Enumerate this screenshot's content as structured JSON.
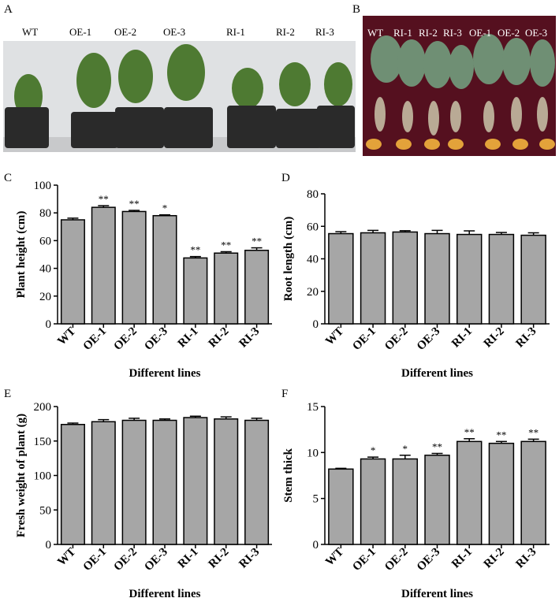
{
  "panels": {
    "a": {
      "label": "A",
      "plants": [
        "WT",
        "OE-1",
        "OE-2",
        "OE-3",
        "RI-1",
        "RI-2",
        "RI-3"
      ]
    },
    "b": {
      "label": "B",
      "plants": [
        "WT",
        "RI-1",
        "RI-2",
        "RI-3",
        "OE-1",
        "OE-2",
        "OE-3"
      ]
    }
  },
  "colors": {
    "bar": "#a6a6a6",
    "photo_wall": "#dcdee0",
    "photo_cloth": "#55101f",
    "pot": "#2a2a2a",
    "leaf": "#4e7a32"
  },
  "chart_data": [
    {
      "id": "C",
      "panel_label": "C",
      "type": "bar",
      "categories": [
        "WT",
        "OE-1",
        "OE-2",
        "OE-3",
        "RI-1",
        "RI-2",
        "RI-3"
      ],
      "values": [
        75,
        84,
        81,
        78,
        47.5,
        51,
        53
      ],
      "errors": [
        1.2,
        1.2,
        0.8,
        0.6,
        1.0,
        1.0,
        1.8
      ],
      "significance": [
        "",
        "**",
        "**",
        "*",
        "**",
        "**",
        "**"
      ],
      "ylim": [
        0,
        100
      ],
      "yticks": [
        0,
        20,
        40,
        60,
        80,
        100
      ],
      "xlabel": "Different lines",
      "ylabel": "Plant height (cm)",
      "title": ""
    },
    {
      "id": "D",
      "panel_label": "D",
      "type": "bar",
      "categories": [
        "WT",
        "OE-1",
        "OE-2",
        "OE-3",
        "RI-1",
        "RI-2",
        "RI-3"
      ],
      "values": [
        55.5,
        56,
        56.5,
        55.5,
        55,
        55,
        54.5
      ],
      "errors": [
        1.2,
        1.5,
        0.8,
        2.0,
        2.2,
        1.2,
        1.5
      ],
      "significance": [
        "",
        "",
        "",
        "",
        "",
        "",
        ""
      ],
      "ylim": [
        0,
        80
      ],
      "yticks": [
        0,
        20,
        40,
        60,
        80
      ],
      "xlabel": "Different lines",
      "ylabel": "Root length (cm)",
      "title": ""
    },
    {
      "id": "E",
      "panel_label": "E",
      "type": "bar",
      "categories": [
        "WT",
        "OE-1",
        "OE-2",
        "OE-3",
        "RI-1",
        "RI-2",
        "RI-3"
      ],
      "values": [
        174,
        178,
        180,
        180,
        184,
        182,
        180
      ],
      "errors": [
        2,
        3,
        3,
        2,
        2,
        3,
        3
      ],
      "significance": [
        "",
        "",
        "",
        "",
        "",
        "",
        ""
      ],
      "ylim": [
        0,
        200
      ],
      "yticks": [
        0,
        50,
        100,
        150,
        200
      ],
      "xlabel": "Different lines",
      "ylabel": "Fresh weight of plant (g)",
      "title": ""
    },
    {
      "id": "F",
      "panel_label": "F",
      "type": "bar",
      "categories": [
        "WT",
        "OE-1",
        "OE-2",
        "OE-3",
        "RI-1",
        "RI-2",
        "RI-3"
      ],
      "values": [
        8.2,
        9.3,
        9.3,
        9.7,
        11.2,
        11.0,
        11.2
      ],
      "errors": [
        0.08,
        0.2,
        0.4,
        0.2,
        0.3,
        0.2,
        0.25
      ],
      "significance": [
        "",
        "*",
        "*",
        "**",
        "**",
        "**",
        "**"
      ],
      "ylim": [
        0,
        15
      ],
      "yticks": [
        0,
        5,
        10,
        15
      ],
      "xlabel": "Different lines",
      "ylabel": "Stem thick",
      "title": ""
    }
  ]
}
